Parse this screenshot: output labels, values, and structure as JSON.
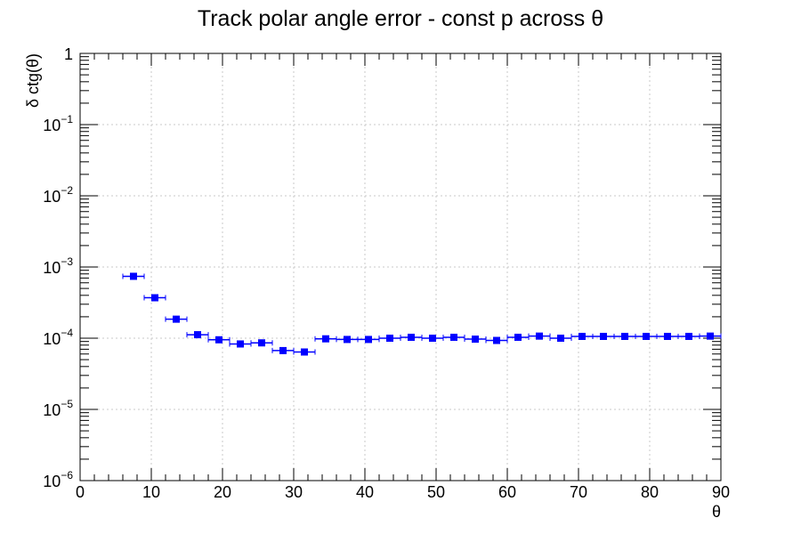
{
  "chart_data": {
    "type": "scatter",
    "title": "Track polar angle error - const p across θ",
    "xlabel": "θ",
    "ylabel": "δ ctg(θ)",
    "xlim": [
      0,
      90
    ],
    "ylim": [
      1e-06,
      1
    ],
    "yscale": "log",
    "grid": true,
    "x_ticks": [
      0,
      10,
      20,
      30,
      40,
      50,
      60,
      70,
      80,
      90
    ],
    "y_ticks": [
      {
        "value": 1,
        "mantissa": "1",
        "exponent": ""
      },
      {
        "value": 0.1,
        "mantissa": "10",
        "exponent": "−1"
      },
      {
        "value": 0.01,
        "mantissa": "10",
        "exponent": "−2"
      },
      {
        "value": 0.001,
        "mantissa": "10",
        "exponent": "−3"
      },
      {
        "value": 0.0001,
        "mantissa": "10",
        "exponent": "−4"
      },
      {
        "value": 1e-05,
        "mantissa": "10",
        "exponent": "−5"
      },
      {
        "value": 1e-06,
        "mantissa": "10",
        "exponent": "−6"
      }
    ],
    "x_bin_halfwidth": 1.5,
    "marker_color": "#0000ff",
    "series": [
      {
        "x": [
          7.5,
          10.5,
          13.5,
          16.5,
          19.5,
          22.5,
          25.5,
          28.5,
          31.5,
          34.5,
          37.5,
          40.5,
          43.5,
          46.5,
          49.5,
          52.5,
          55.5,
          58.5,
          61.5,
          64.5,
          67.5,
          70.5,
          73.5,
          76.5,
          79.5,
          82.5,
          85.5,
          88.5
        ],
        "y": [
          0.00074,
          0.00037,
          0.000185,
          0.000112,
          9.5e-05,
          8.3e-05,
          8.6e-05,
          6.7e-05,
          6.4e-05,
          9.8e-05,
          9.6e-05,
          9.6e-05,
          0.0001,
          0.000103,
          0.0001,
          0.000103,
          9.7e-05,
          9.3e-05,
          0.000103,
          0.000107,
          0.0001,
          0.000106,
          0.000106,
          0.000106,
          0.000106,
          0.000106,
          0.000106,
          0.000107
        ]
      }
    ]
  }
}
